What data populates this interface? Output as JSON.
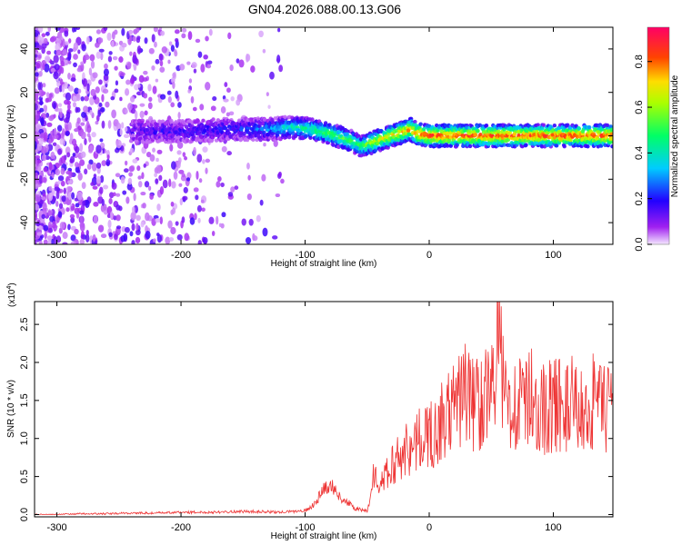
{
  "title": "GN04.2026.088.00.13.G06",
  "chart_data": [
    {
      "type": "heatmap",
      "xlabel": "Height of straight line (km)",
      "ylabel": "Frequency (Hz)",
      "xlim": [
        -318,
        148
      ],
      "ylim": [
        -50,
        50
      ],
      "xticks": [
        -300,
        -200,
        -100,
        0,
        100
      ],
      "yticks": [
        -40,
        -20,
        0,
        20,
        40
      ],
      "colorbar": {
        "label": "Normalized spectral amplitude",
        "range": [
          0,
          0.95
        ],
        "ticks": [
          0.0,
          0.2,
          0.4,
          0.6,
          0.8
        ]
      },
      "ridge_x": [
        -240,
        -200,
        -160,
        -130,
        -110,
        -95,
        -80,
        -70,
        -60,
        -55,
        -50,
        -40,
        -30,
        -20,
        -15,
        -10,
        0,
        20,
        40,
        60,
        80,
        100,
        120,
        148
      ],
      "ridge_freq": [
        2,
        2,
        3,
        3,
        4,
        3,
        1,
        -1,
        -3,
        -5,
        -4,
        -2,
        0,
        2,
        3,
        1,
        0,
        0,
        0,
        0,
        0,
        0,
        0,
        0
      ],
      "ridge_amp": [
        0.15,
        0.18,
        0.2,
        0.3,
        0.45,
        0.5,
        0.55,
        0.55,
        0.55,
        0.5,
        0.6,
        0.7,
        0.75,
        0.8,
        0.8,
        0.85,
        0.9,
        0.9,
        0.9,
        0.9,
        0.9,
        0.9,
        0.9,
        0.9
      ],
      "grid": false
    },
    {
      "type": "line",
      "xlabel": "Height of straight line (km)",
      "ylabel": "SNR (10 * v/v)",
      "scale_label": "(x10",
      "scale_exp": "4",
      "xlim": [
        -318,
        148
      ],
      "ylim": [
        -0.03,
        2.8
      ],
      "xticks": [
        -300,
        -200,
        -100,
        0,
        100
      ],
      "yticks": [
        0.0,
        0.5,
        1.0,
        1.5,
        2.0,
        2.5
      ],
      "color": "#ee3333",
      "series": [
        {
          "x": [
            -318,
            -300,
            -280,
            -260,
            -240,
            -220,
            -200,
            -180,
            -160,
            -140,
            -120,
            -110,
            -100,
            -95,
            -90,
            -85,
            -80,
            -75,
            -70,
            -65,
            -60,
            -55,
            -50,
            -47,
            -45,
            -43,
            -40,
            -35,
            -30,
            -25,
            -20,
            -15,
            -10,
            -5,
            0,
            5,
            10,
            15,
            20,
            25,
            30,
            35,
            40,
            45,
            50,
            55,
            60,
            65,
            70,
            75,
            80,
            85,
            90,
            95,
            100,
            105,
            110,
            115,
            120,
            125,
            130,
            135,
            140,
            145,
            148
          ],
          "values": [
            0.0,
            0.0,
            0.01,
            0.01,
            0.02,
            0.02,
            0.03,
            0.03,
            0.04,
            0.04,
            0.03,
            0.04,
            0.05,
            0.1,
            0.2,
            0.35,
            0.4,
            0.3,
            0.2,
            0.15,
            0.08,
            0.06,
            0.05,
            0.25,
            0.6,
            0.45,
            0.35,
            0.5,
            0.65,
            0.75,
            0.85,
            0.9,
            0.95,
            1.0,
            1.05,
            1.1,
            1.2,
            1.3,
            1.4,
            1.55,
            1.6,
            1.45,
            1.5,
            1.6,
            1.55,
            2.4,
            1.6,
            1.45,
            1.5,
            1.4,
            1.55,
            1.5,
            1.35,
            1.45,
            1.4,
            1.5,
            1.35,
            1.45,
            1.4,
            1.3,
            1.45,
            1.5,
            1.35,
            1.4,
            1.45
          ]
        }
      ],
      "grid": false
    }
  ]
}
